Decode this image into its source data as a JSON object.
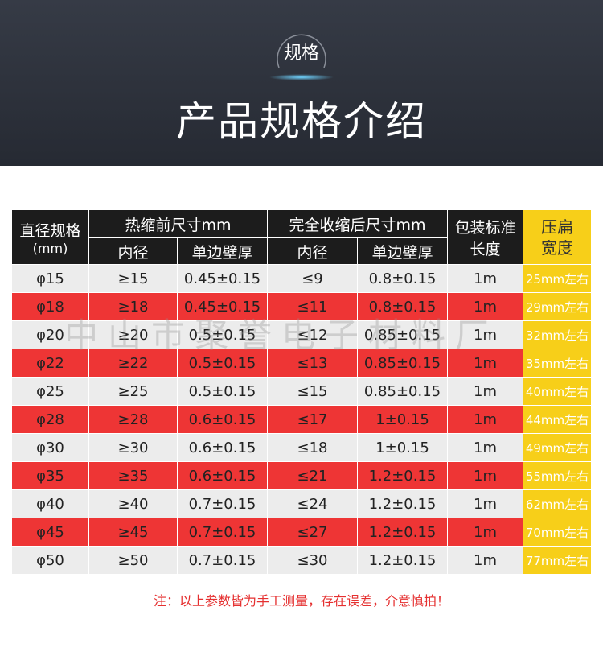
{
  "banner": {
    "badge": "规格",
    "title": "产品规格介绍"
  },
  "table": {
    "headers": {
      "diameter": [
        "直径规格",
        "(mm)"
      ],
      "before": "热缩前尺寸mm",
      "after": "完全收缩后尺寸mm",
      "package": [
        "包装标准",
        "长度"
      ],
      "flat_width": [
        "压扁",
        "宽度"
      ],
      "sub": [
        "内径",
        "单边壁厚",
        "内径",
        "单边壁厚"
      ]
    },
    "rows": [
      [
        "φ15",
        "≥15",
        "0.45±0.15",
        "≤9",
        "0.8±0.15",
        "1m",
        "25mm左右"
      ],
      [
        "φ18",
        "≥18",
        "0.45±0.15",
        "≤11",
        "0.8±0.15",
        "1m",
        "29mm左右"
      ],
      [
        "φ20",
        "≥20",
        "0.5±0.15",
        "≤12",
        "0.85±0.15",
        "1m",
        "32mm左右"
      ],
      [
        "φ22",
        "≥22",
        "0.5±0.15",
        "≤13",
        "0.85±0.15",
        "1m",
        "35mm左右"
      ],
      [
        "φ25",
        "≥25",
        "0.5±0.15",
        "≤15",
        "0.85±0.15",
        "1m",
        "40mm左右"
      ],
      [
        "φ28",
        "≥28",
        "0.6±0.15",
        "≤17",
        "1±0.15",
        "1m",
        "44mm左右"
      ],
      [
        "φ30",
        "≥30",
        "0.6±0.15",
        "≤18",
        "1±0.15",
        "1m",
        "49mm左右"
      ],
      [
        "φ35",
        "≥35",
        "0.6±0.15",
        "≤21",
        "1.2±0.15",
        "1m",
        "55mm左右"
      ],
      [
        "φ40",
        "≥40",
        "0.7±0.15",
        "≤24",
        "1.2±0.15",
        "1m",
        "62mm左右"
      ],
      [
        "φ45",
        "≥45",
        "0.7±0.15",
        "≤27",
        "1.2±0.15",
        "1m",
        "70mm左右"
      ],
      [
        "φ50",
        "≥50",
        "0.7±0.15",
        "≤30",
        "1.2±0.15",
        "1m",
        "77mm左右"
      ]
    ]
  },
  "watermark": "中山市聚誉电子材料厂",
  "note": "注：以上参数皆为手工测量，存在误差，介意慎拍！"
}
